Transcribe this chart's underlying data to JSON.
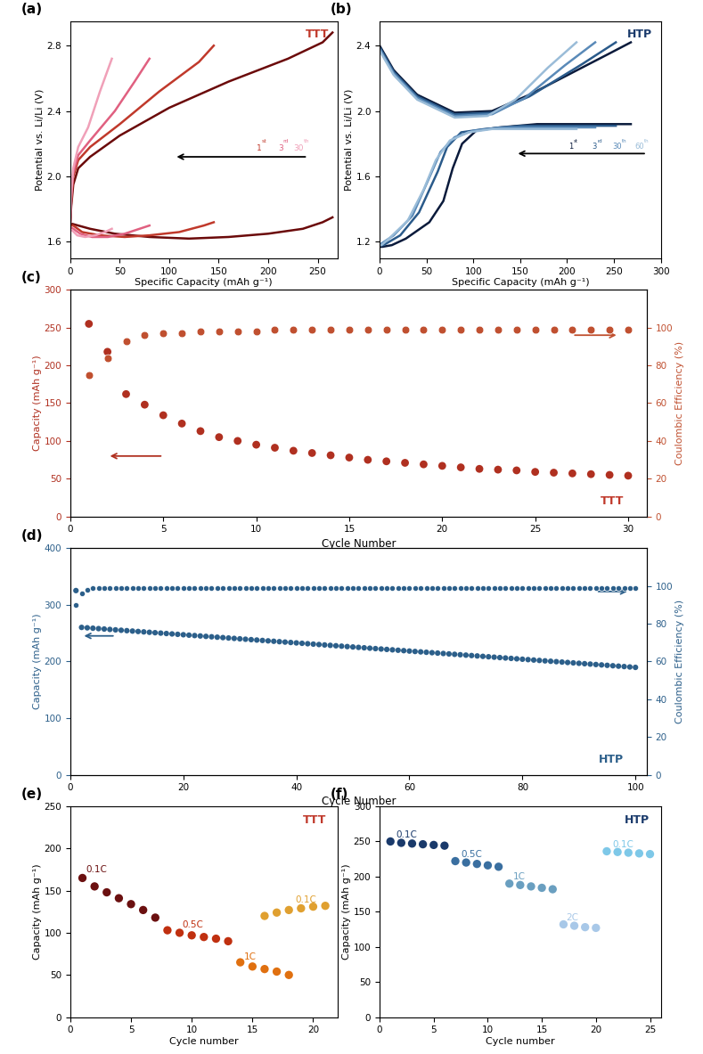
{
  "panel_a": {
    "label": "(a)",
    "title": "TTT",
    "title_color": "#c0392b",
    "xlabel": "Specific Capacity (mAh g⁻¹)",
    "ylabel": "Potential vs. Li/Li (V)",
    "xlim": [
      0,
      270
    ],
    "ylim": [
      1.5,
      2.95
    ],
    "yticks": [
      1.6,
      2.0,
      2.4,
      2.8
    ],
    "xticks": [
      0,
      50,
      100,
      150,
      200,
      250
    ],
    "curves_colors": [
      "#f0a0b8",
      "#e06080",
      "#c0392b",
      "#6b0a0a"
    ]
  },
  "panel_b": {
    "label": "(b)",
    "title": "HTP",
    "title_color": "#1a3a6b",
    "xlabel": "Specific Capacity (mAh g⁻¹)",
    "ylabel": "Potential vs. Li/Li (V)",
    "xlim": [
      0,
      300
    ],
    "ylim": [
      1.1,
      2.55
    ],
    "yticks": [
      1.2,
      1.6,
      2.0,
      2.4
    ],
    "xticks": [
      0,
      50,
      100,
      150,
      200,
      250,
      300
    ],
    "curves_colors": [
      "#9abcd8",
      "#5a8ab8",
      "#2a5a8a",
      "#0a1a3b"
    ]
  },
  "panel_c": {
    "label": "(c)",
    "title": "TTT",
    "title_color": "#c0392b",
    "xlabel": "Cycle Number",
    "ylabel_left": "Capacity (mAh g⁻¹)",
    "ylabel_right": "Coulombic Efficiency (%)",
    "xlim": [
      0,
      31
    ],
    "ylim_left": [
      0,
      300
    ],
    "ylim_right": [
      0,
      120
    ],
    "yticks_left": [
      0,
      50,
      100,
      150,
      200,
      250,
      300
    ],
    "yticks_right": [
      0,
      20,
      40,
      60,
      80,
      100
    ],
    "xticks": [
      0,
      5,
      10,
      15,
      20,
      25,
      30
    ],
    "capacity_cycles": [
      1,
      2,
      3,
      4,
      5,
      6,
      7,
      8,
      9,
      10,
      11,
      12,
      13,
      14,
      15,
      16,
      17,
      18,
      19,
      20,
      21,
      22,
      23,
      24,
      25,
      26,
      27,
      28,
      29,
      30
    ],
    "capacity_values": [
      255,
      218,
      162,
      148,
      134,
      123,
      113,
      105,
      100,
      95,
      91,
      87,
      84,
      81,
      78,
      75,
      73,
      71,
      69,
      67,
      65,
      63,
      62,
      61,
      59,
      58,
      57,
      56,
      55,
      54
    ],
    "ce_values": [
      75,
      84,
      93,
      96,
      97,
      97,
      98,
      98,
      98,
      98,
      99,
      99,
      99,
      99,
      99,
      99,
      99,
      99,
      99,
      99,
      99,
      99,
      99,
      99,
      99,
      99,
      99,
      99,
      99,
      99
    ],
    "dot_color": "#b03020",
    "ce_color": "#c05030"
  },
  "panel_d": {
    "label": "(d)",
    "title": "HTP",
    "title_color": "#2c5f8a",
    "xlabel": "Cycle Number",
    "ylabel_left": "Capacity (mAh g⁻¹)",
    "ylabel_right": "Coulombic Efficiency (%)",
    "xlim": [
      0,
      102
    ],
    "ylim_left": [
      0,
      400
    ],
    "ylim_right": [
      0,
      120
    ],
    "yticks_left": [
      0,
      100,
      200,
      300,
      400
    ],
    "yticks_right": [
      0,
      20,
      40,
      60,
      80,
      100
    ],
    "xticks": [
      0,
      20,
      40,
      60,
      80,
      100
    ],
    "dot_color": "#2c5f8a",
    "ce_color": "#2c5f8a"
  },
  "panel_e": {
    "label": "(e)",
    "title": "TTT",
    "title_color": "#c0392b",
    "xlabel": "Cycle number",
    "ylabel": "Capacity (mAh g⁻¹)",
    "xlim": [
      0,
      22
    ],
    "ylim": [
      0,
      250
    ],
    "yticks": [
      0,
      50,
      100,
      150,
      200,
      250
    ],
    "xticks": [
      0,
      5,
      10,
      15,
      20
    ]
  },
  "panel_f": {
    "label": "(f)",
    "title": "HTP",
    "title_color": "#1a3a6b",
    "xlabel": "Cycle number",
    "ylabel": "Capacity (mAh g⁻¹)",
    "xlim": [
      0,
      26
    ],
    "ylim": [
      0,
      300
    ],
    "yticks": [
      0,
      50,
      100,
      150,
      200,
      250,
      300
    ],
    "xticks": [
      0,
      5,
      10,
      15,
      20,
      25
    ]
  }
}
